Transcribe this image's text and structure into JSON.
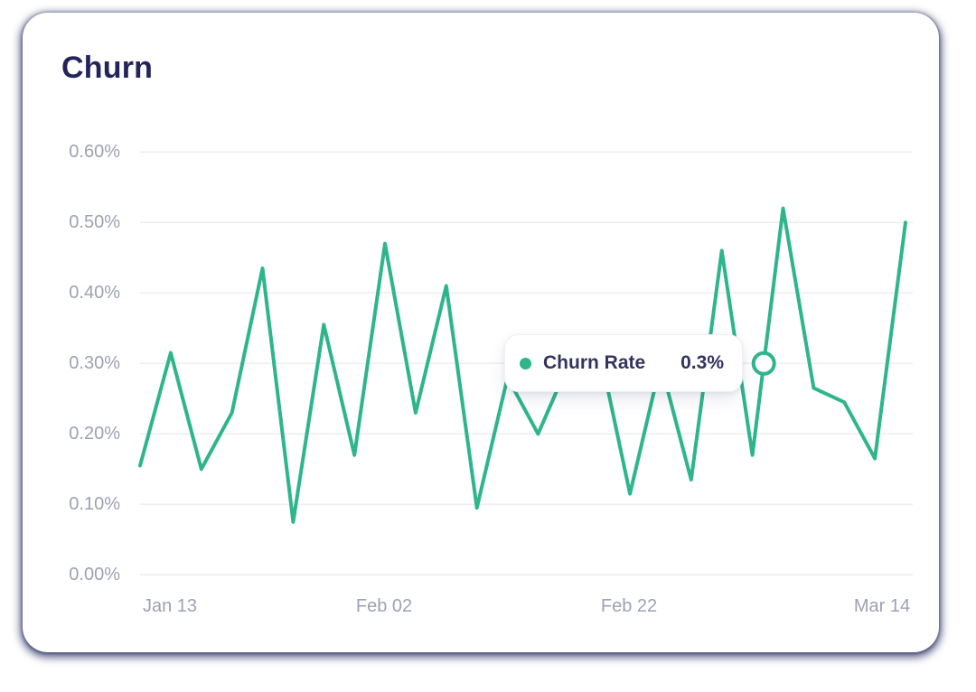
{
  "card": {
    "title": "Churn"
  },
  "chart_data": {
    "type": "line",
    "title": "Churn",
    "series": [
      {
        "name": "Churn Rate",
        "unit": "%",
        "values_pct": [
          0.155,
          0.315,
          0.15,
          0.23,
          0.435,
          0.075,
          0.355,
          0.17,
          0.47,
          0.23,
          0.41,
          0.095,
          0.28,
          0.2,
          0.3,
          0.32,
          0.115,
          0.3,
          0.135,
          0.46,
          0.17,
          0.52,
          0.265,
          0.245,
          0.165,
          0.5
        ]
      }
    ],
    "x_tick_labels": [
      "Jan 13",
      "Feb 02",
      "Feb 22",
      "Mar 14"
    ],
    "y_tick_labels": [
      "0.60%",
      "0.50%",
      "0.40%",
      "0.30%",
      "0.20%",
      "0.10%",
      "0.00%"
    ],
    "ylim_pct": [
      0.0,
      0.6
    ],
    "grid": "horizontal",
    "legend": "none",
    "line_color": "#2eb58c",
    "hover": {
      "label": "Churn Rate",
      "display": "0.3%",
      "value_pct": 0.3,
      "segment_start_index": 20
    }
  }
}
